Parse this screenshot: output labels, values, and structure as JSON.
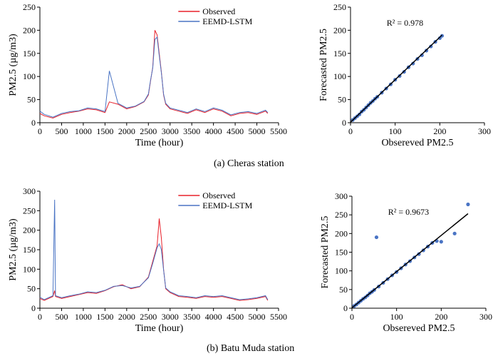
{
  "figure": {
    "captions": [
      "(a)  Cheras station",
      "(b)  Batu Muda station"
    ]
  },
  "chart_data": [
    {
      "type": "line",
      "panel": "cheras-timeseries",
      "xlabel": "Time (hour)",
      "ylabel": "PM2.5 (µg/m3)",
      "xlim": [
        0,
        5500
      ],
      "ylim": [
        0,
        250
      ],
      "xticks": [
        0,
        500,
        1000,
        1500,
        2000,
        2500,
        3000,
        3500,
        4000,
        4500,
        5000,
        5500
      ],
      "yticks": [
        0,
        50,
        100,
        150,
        200,
        250
      ],
      "legend": "top-right",
      "series": [
        {
          "name": "Observed",
          "color": "#e8202a",
          "x": [
            0,
            100,
            300,
            500,
            700,
            900,
            1100,
            1300,
            1500,
            1600,
            1800,
            2000,
            2200,
            2400,
            2500,
            2550,
            2600,
            2650,
            2700,
            2750,
            2800,
            2850,
            2900,
            3000,
            3200,
            3400,
            3600,
            3800,
            4000,
            4200,
            4400,
            4600,
            4800,
            5000,
            5200,
            5250
          ],
          "values": [
            20,
            15,
            10,
            18,
            22,
            25,
            30,
            28,
            22,
            45,
            40,
            30,
            35,
            45,
            60,
            90,
            120,
            200,
            190,
            150,
            110,
            60,
            40,
            30,
            25,
            20,
            28,
            22,
            30,
            25,
            15,
            20,
            22,
            18,
            25,
            20
          ]
        },
        {
          "name": "EEMD-LSTM",
          "color": "#4a74c4",
          "x": [
            0,
            100,
            300,
            500,
            700,
            900,
            1100,
            1300,
            1500,
            1600,
            1800,
            2000,
            2200,
            2400,
            2500,
            2550,
            2600,
            2650,
            2700,
            2750,
            2800,
            2850,
            2900,
            3000,
            3200,
            3400,
            3600,
            3800,
            4000,
            4200,
            4400,
            4600,
            4800,
            5000,
            5200,
            5250
          ],
          "values": [
            25,
            18,
            12,
            20,
            24,
            26,
            32,
            30,
            24,
            112,
            42,
            32,
            36,
            46,
            62,
            92,
            118,
            180,
            185,
            145,
            108,
            62,
            42,
            32,
            27,
            22,
            30,
            24,
            32,
            27,
            17,
            22,
            24,
            20,
            27,
            22
          ]
        }
      ]
    },
    {
      "type": "scatter",
      "panel": "cheras-scatter",
      "xlabel": "Obsereved PM2.5",
      "ylabel": "Forecasted PM2.5",
      "xlim": [
        0,
        300
      ],
      "ylim": [
        0,
        250
      ],
      "xticks": [
        0,
        100,
        200,
        300
      ],
      "yticks": [
        0,
        50,
        100,
        150,
        200,
        250
      ],
      "annotation": "R² = 0.978",
      "trendline": {
        "slope": 0.92,
        "intercept": 1
      },
      "color": "#4a74c4",
      "x": [
        5,
        10,
        15,
        20,
        25,
        30,
        35,
        40,
        45,
        50,
        55,
        60,
        70,
        80,
        90,
        100,
        110,
        120,
        130,
        140,
        150,
        160,
        170,
        180,
        190,
        200,
        205
      ],
      "values": [
        6,
        10,
        14,
        18,
        24,
        28,
        33,
        38,
        43,
        47,
        52,
        56,
        65,
        74,
        83,
        93,
        101,
        110,
        120,
        128,
        138,
        146,
        156,
        165,
        175,
        183,
        188
      ]
    },
    {
      "type": "line",
      "panel": "batu-muda-timeseries",
      "xlabel": "Time (hour)",
      "ylabel": "PM2.5 (µg/m3)",
      "xlim": [
        0,
        5500
      ],
      "ylim": [
        0,
        300
      ],
      "xticks": [
        0,
        500,
        1000,
        1500,
        2000,
        2500,
        3000,
        3500,
        4000,
        4500,
        5000,
        5500
      ],
      "yticks": [
        0,
        50,
        100,
        150,
        200,
        250,
        300
      ],
      "legend": "top-right",
      "series": [
        {
          "name": "Observed",
          "color": "#e8202a",
          "x": [
            0,
            100,
            300,
            340,
            360,
            500,
            700,
            900,
            1100,
            1300,
            1500,
            1700,
            1900,
            2100,
            2300,
            2500,
            2600,
            2700,
            2750,
            2800,
            2850,
            2900,
            3000,
            3200,
            3400,
            3600,
            3800,
            4000,
            4200,
            4400,
            4600,
            4800,
            5000,
            5200,
            5250
          ],
          "values": [
            25,
            20,
            30,
            45,
            30,
            25,
            30,
            35,
            40,
            38,
            45,
            55,
            60,
            50,
            55,
            80,
            120,
            160,
            230,
            180,
            100,
            50,
            40,
            30,
            28,
            25,
            30,
            28,
            30,
            25,
            20,
            22,
            25,
            30,
            20
          ]
        },
        {
          "name": "EEMD-LSTM",
          "color": "#4a74c4",
          "x": [
            0,
            100,
            300,
            340,
            360,
            500,
            700,
            900,
            1100,
            1300,
            1500,
            1700,
            1900,
            2100,
            2300,
            2500,
            2600,
            2700,
            2750,
            2800,
            2850,
            2900,
            3000,
            3200,
            3400,
            3600,
            3800,
            4000,
            4200,
            4400,
            4600,
            4800,
            5000,
            5200,
            5250
          ],
          "values": [
            28,
            22,
            32,
            278,
            32,
            27,
            32,
            36,
            42,
            40,
            46,
            56,
            58,
            52,
            56,
            78,
            115,
            155,
            165,
            150,
            98,
            52,
            42,
            32,
            30,
            27,
            32,
            30,
            32,
            27,
            22,
            24,
            27,
            32,
            22
          ]
        }
      ]
    },
    {
      "type": "scatter",
      "panel": "batu-muda-scatter",
      "xlabel": "Obsereved PM2.5",
      "ylabel": "Forecasted PM2.5",
      "xlim": [
        0,
        300
      ],
      "ylim": [
        0,
        300
      ],
      "xticks": [
        0,
        100,
        200,
        300
      ],
      "yticks": [
        0,
        50,
        100,
        150,
        200,
        250,
        300
      ],
      "annotation": "R² = 0.9673",
      "trendline": {
        "slope": 0.97,
        "intercept": 1
      },
      "color": "#4a74c4",
      "x": [
        5,
        10,
        15,
        20,
        25,
        30,
        35,
        40,
        45,
        50,
        55,
        60,
        70,
        80,
        90,
        100,
        110,
        120,
        130,
        140,
        150,
        160,
        170,
        180,
        190,
        200,
        230,
        260
      ],
      "values": [
        6,
        10,
        15,
        20,
        25,
        29,
        34,
        40,
        44,
        49,
        190,
        58,
        68,
        78,
        88,
        97,
        107,
        117,
        126,
        136,
        145,
        155,
        165,
        175,
        180,
        178,
        200,
        278
      ]
    }
  ]
}
